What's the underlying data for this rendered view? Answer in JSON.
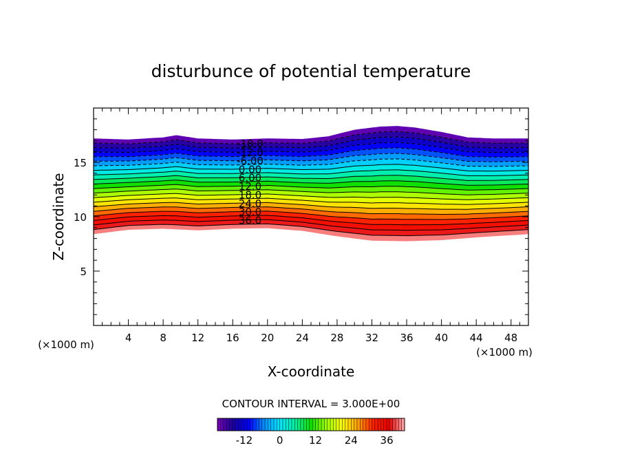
{
  "chart_data": {
    "type": "contour",
    "title": "disturbunce of potential temperature",
    "xlabel": "X-coordinate",
    "ylabel": "Z-coordinate",
    "x_unit": "(×1000 m)",
    "y_unit": "(×1000 m)",
    "xlim": [
      0,
      50
    ],
    "ylim": [
      0,
      20
    ],
    "x_ticks": [
      4,
      8,
      12,
      16,
      20,
      24,
      28,
      32,
      36,
      40,
      44,
      48
    ],
    "y_ticks": [
      5,
      10,
      15
    ],
    "contour_interval_label": "CONTOUR INTERVAL = 3.000E+00",
    "contour_interval": 3,
    "contour_labels": [
      "-18.0",
      "-12.0",
      "-6.00",
      "0.00",
      "6.00",
      "12.0",
      "18.0",
      "24.0",
      "30.0",
      "36.0"
    ],
    "level_range": [
      -21,
      42
    ],
    "colorbar_ticks": [
      "-12",
      "0",
      "12",
      "24",
      "36"
    ],
    "colorbar_tick_values": [
      -12,
      0,
      12,
      24,
      36
    ],
    "colormap": [
      "#7a00b8",
      "#1a00a0",
      "#0000ff",
      "#0090ff",
      "#00e8ff",
      "#00f0a0",
      "#10e000",
      "#a0ff00",
      "#ffff00",
      "#ffa000",
      "#ff2000",
      "#e80000",
      "#ffb0b0"
    ],
    "layer_bottom": {
      "x": [
        0,
        4,
        8,
        12,
        16,
        20,
        24,
        28,
        32,
        36,
        40,
        44,
        48,
        50
      ],
      "z": [
        8.4,
        8.8,
        8.9,
        8.75,
        8.9,
        8.95,
        8.7,
        8.2,
        7.8,
        7.75,
        7.85,
        8.1,
        8.3,
        8.4
      ]
    },
    "layer_top": {
      "x": [
        0,
        4,
        8,
        9.5,
        12,
        16,
        20,
        24,
        27,
        30,
        33,
        35,
        37,
        40,
        43,
        46,
        50
      ],
      "z": [
        17.2,
        17.1,
        17.3,
        17.5,
        17.2,
        17.1,
        17.2,
        17.15,
        17.4,
        18.0,
        18.3,
        18.35,
        18.2,
        17.8,
        17.3,
        17.2,
        17.2
      ]
    }
  }
}
